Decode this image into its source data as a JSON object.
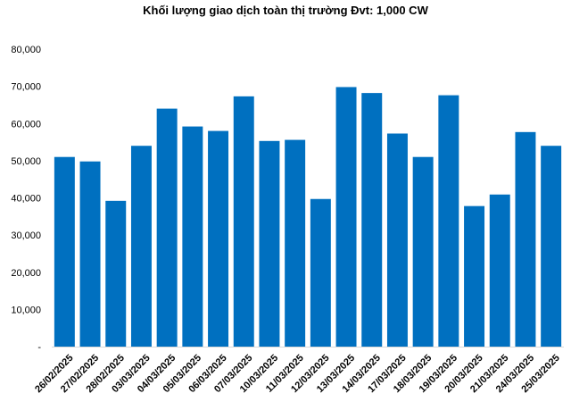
{
  "chart_data": {
    "type": "bar",
    "title": "Khối lượng giao dịch toàn thị trường Đvt: 1,000 CW",
    "xlabel": "",
    "ylabel": "",
    "ylim": [
      0,
      80000
    ],
    "yticks": [
      {
        "value": 0,
        "label": "-"
      },
      {
        "value": 10000,
        "label": "10,000"
      },
      {
        "value": 20000,
        "label": "20,000"
      },
      {
        "value": 30000,
        "label": "30,000"
      },
      {
        "value": 40000,
        "label": "40,000"
      },
      {
        "value": 50000,
        "label": "50,000"
      },
      {
        "value": 60000,
        "label": "60,000"
      },
      {
        "value": 70000,
        "label": "70,000"
      },
      {
        "value": 80000,
        "label": "80,000"
      }
    ],
    "grid": false,
    "legend": "none",
    "bar_color": "#0070C0",
    "categories": [
      "26/02/2025",
      "27/02/2025",
      "28/02/2025",
      "03/03/2025",
      "04/03/2025",
      "05/03/2025",
      "06/03/2025",
      "07/03/2025",
      "10/03/2025",
      "11/03/2025",
      "12/03/2025",
      "13/03/2025",
      "14/03/2025",
      "17/03/2025",
      "18/03/2025",
      "19/03/2025",
      "20/03/2025",
      "21/03/2025",
      "24/03/2025",
      "25/03/2025"
    ],
    "values": [
      51000,
      49800,
      39200,
      54000,
      64000,
      59200,
      58000,
      67300,
      55300,
      55600,
      39700,
      69800,
      68200,
      57300,
      51000,
      67600,
      37800,
      40900,
      57700,
      54000
    ]
  }
}
